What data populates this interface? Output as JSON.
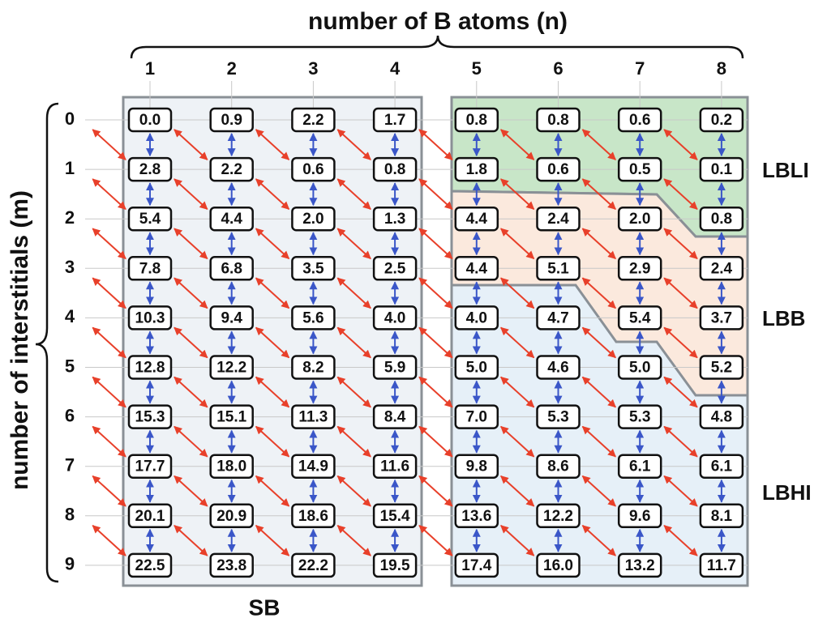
{
  "title": "number of B atoms (n)",
  "y_label": "number of interstitials (m)",
  "columns": [
    "1",
    "2",
    "3",
    "4",
    "5",
    "6",
    "7",
    "8"
  ],
  "rows": [
    "0",
    "1",
    "2",
    "3",
    "4",
    "5",
    "6",
    "7",
    "8",
    "9"
  ],
  "cells": [
    [
      "0.0",
      "0.9",
      "2.2",
      "1.7",
      "0.8",
      "0.8",
      "0.6",
      "0.2"
    ],
    [
      "2.8",
      "2.2",
      "0.6",
      "0.8",
      "1.8",
      "0.6",
      "0.5",
      "0.1"
    ],
    [
      "5.4",
      "4.4",
      "2.0",
      "1.3",
      "4.4",
      "2.4",
      "2.0",
      "0.8"
    ],
    [
      "7.8",
      "6.8",
      "3.5",
      "2.5",
      "4.4",
      "5.1",
      "2.9",
      "2.4"
    ],
    [
      "10.3",
      "9.4",
      "5.6",
      "4.0",
      "4.0",
      "4.7",
      "5.4",
      "3.7"
    ],
    [
      "12.8",
      "12.2",
      "8.2",
      "5.9",
      "5.0",
      "4.6",
      "5.0",
      "5.2"
    ],
    [
      "15.3",
      "15.1",
      "11.3",
      "8.4",
      "7.0",
      "5.3",
      "5.3",
      "4.8"
    ],
    [
      "17.7",
      "18.0",
      "14.9",
      "11.6",
      "9.8",
      "8.6",
      "6.1",
      "6.1"
    ],
    [
      "20.1",
      "20.9",
      "18.6",
      "15.4",
      "13.6",
      "12.2",
      "9.6",
      "8.1"
    ],
    [
      "22.5",
      "23.8",
      "22.2",
      "19.5",
      "17.4",
      "16.0",
      "13.2",
      "11.7"
    ]
  ],
  "region_labels": [
    "LBLI",
    "LBB",
    "LBHI",
    "SB"
  ]
}
